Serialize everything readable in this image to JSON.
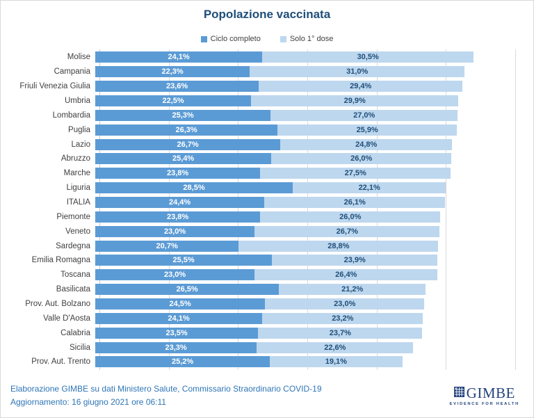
{
  "title": "Popolazione vaccinata",
  "chart_data": {
    "type": "bar",
    "orientation": "horizontal",
    "stacked": true,
    "grid": true,
    "legend_position": "top",
    "xlim": [
      0,
      60
    ],
    "x_ticks": [
      "0%",
      "10%",
      "20%",
      "30%",
      "40%",
      "50%",
      "60%"
    ],
    "categories": [
      "Molise",
      "Campania",
      "Friuli Venezia Giulia",
      "Umbria",
      "Lombardia",
      "Puglia",
      "Lazio",
      "Abruzzo",
      "Marche",
      "Liguria",
      "ITALIA",
      "Piemonte",
      "Veneto",
      "Sardegna",
      "Emilia Romagna",
      "Toscana",
      "Basilicata",
      "Prov. Aut. Bolzano",
      "Valle D'Aosta",
      "Calabria",
      "Sicilia",
      "Prov. Aut. Trento"
    ],
    "series": [
      {
        "name": "Ciclo completo",
        "color": "#5B9BD5",
        "label_color": "#FFFFFF",
        "values": [
          24.1,
          22.3,
          23.6,
          22.5,
          25.3,
          26.3,
          26.7,
          25.4,
          23.8,
          28.5,
          24.4,
          23.8,
          23.0,
          20.7,
          25.5,
          23.0,
          26.5,
          24.5,
          24.1,
          23.5,
          23.3,
          25.2
        ],
        "labels": [
          "24,1%",
          "22,3%",
          "23,6%",
          "22,5%",
          "25,3%",
          "26,3%",
          "26,7%",
          "25,4%",
          "23,8%",
          "28,5%",
          "24,4%",
          "23,8%",
          "23,0%",
          "20,7%",
          "25,5%",
          "23,0%",
          "26,5%",
          "24,5%",
          "24,1%",
          "23,5%",
          "23,3%",
          "25,2%"
        ]
      },
      {
        "name": "Solo 1° dose",
        "color": "#BDD7EE",
        "label_color": "#1F4E79",
        "values": [
          30.5,
          31.0,
          29.4,
          29.9,
          27.0,
          25.9,
          24.8,
          26.0,
          27.5,
          22.1,
          26.1,
          26.0,
          26.7,
          28.8,
          23.9,
          26.4,
          21.2,
          23.0,
          23.2,
          23.7,
          22.6,
          19.1
        ],
        "labels": [
          "30,5%",
          "31,0%",
          "29,4%",
          "29,9%",
          "27,0%",
          "25,9%",
          "24,8%",
          "26,0%",
          "27,5%",
          "22,1%",
          "26,1%",
          "26,0%",
          "26,7%",
          "28,8%",
          "23,9%",
          "26,4%",
          "21,2%",
          "23,0%",
          "23,2%",
          "23,7%",
          "22,6%",
          "19,1%"
        ]
      }
    ]
  },
  "footer": {
    "line1": "Elaborazione GIMBE su dati Ministero Salute, Commissario Straordinario COVID-19",
    "line2": "Aggiornamento: 16 giugno 2021 ore 06:11",
    "logo_text": "GIMBE",
    "logo_tagline": "EVIDENCE FOR HEALTH"
  },
  "colors": {
    "title": "#1F4E79",
    "footer_text": "#2E75B6",
    "gridline": "#D9D9D9",
    "axis_label": "#595959",
    "logo": "#24437c"
  }
}
